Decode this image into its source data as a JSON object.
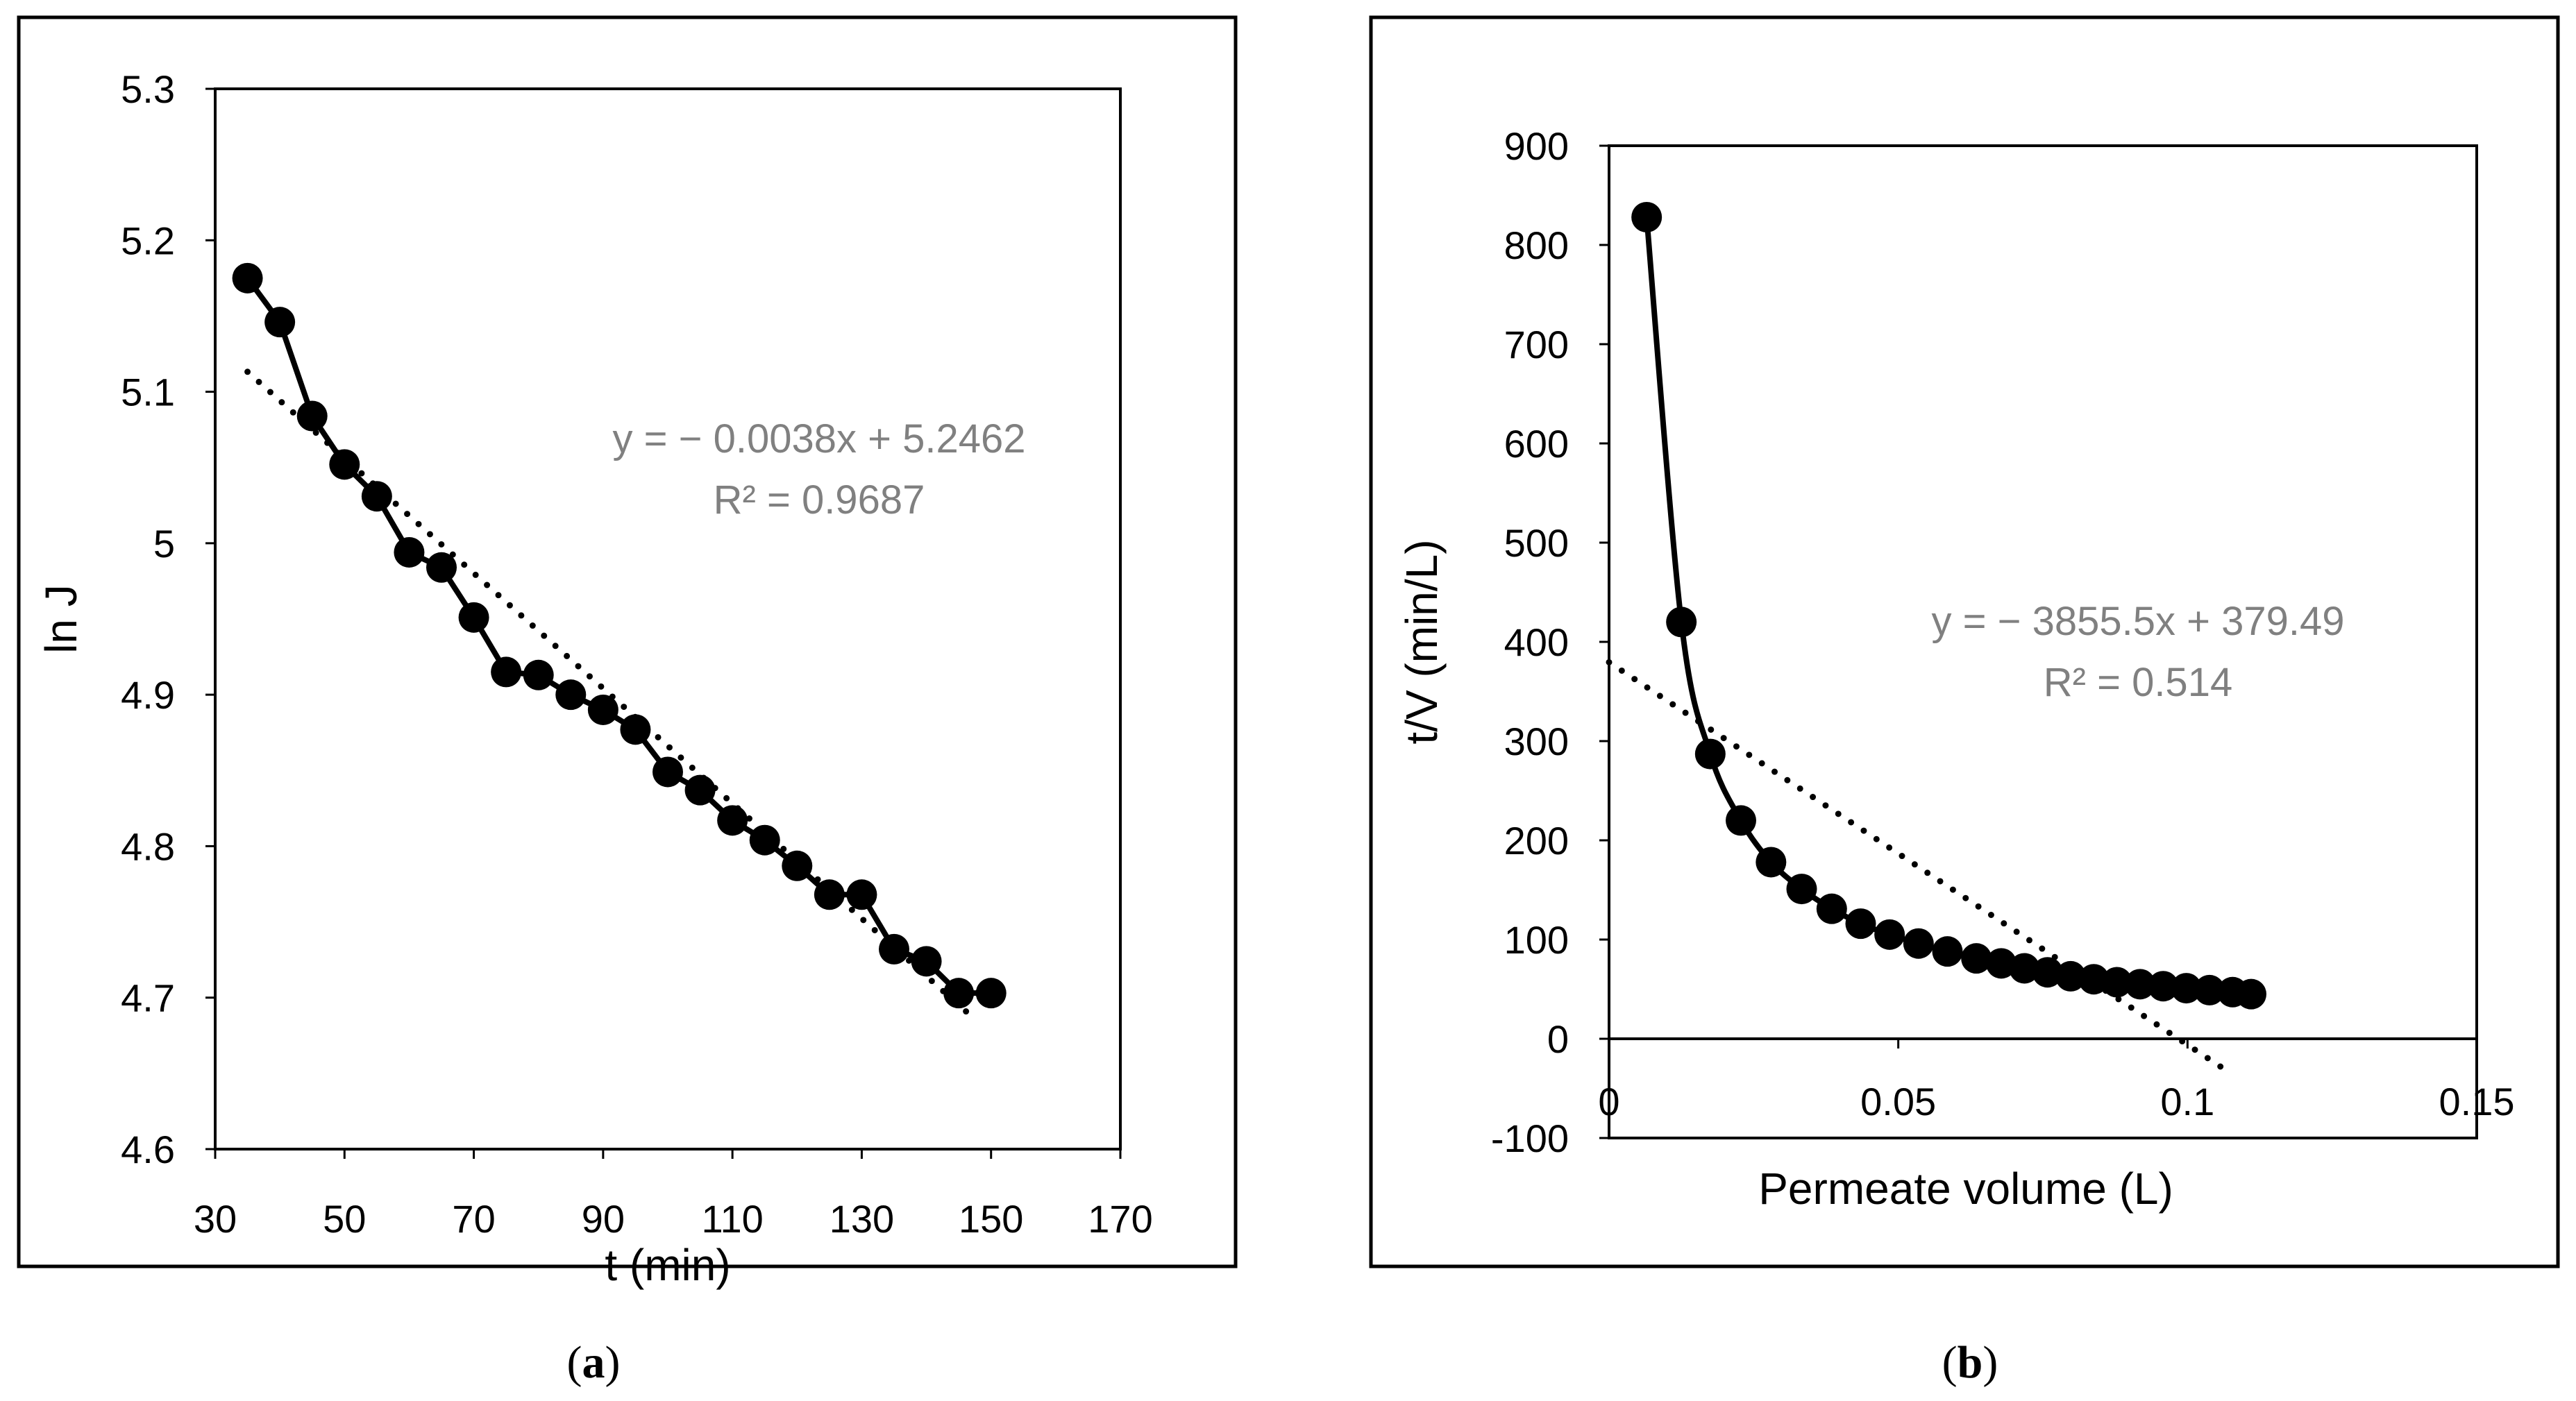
{
  "colors": {
    "series": "#000000",
    "trend_text": "#808080",
    "frame": "#000000",
    "background": "#ffffff"
  },
  "chart_data": [
    {
      "id": "a",
      "type": "scatter",
      "caption_letter": "a",
      "xlabel": "t (min)",
      "ylabel": "ln J",
      "xlim": [
        30,
        170
      ],
      "ylim": [
        4.6,
        5.3
      ],
      "x_ticks": [
        "30",
        "50",
        "70",
        "90",
        "110",
        "130",
        "150",
        "170"
      ],
      "y_ticks": [
        "4.6",
        "4.7",
        "4.8",
        "4.9",
        "5",
        "5.1",
        "5.2",
        "5.3"
      ],
      "series": [
        {
          "name": "ln J",
          "x": [
            35,
            40,
            45,
            50,
            55,
            60,
            65,
            70,
            75,
            80,
            85,
            90,
            95,
            100,
            105,
            110,
            115,
            120,
            125,
            130,
            135,
            140,
            145,
            150
          ],
          "y": [
            5.175,
            5.146,
            5.084,
            5.052,
            5.031,
            4.994,
            4.984,
            4.951,
            4.915,
            4.913,
            4.9,
            4.89,
            4.877,
            4.849,
            4.837,
            4.817,
            4.804,
            4.787,
            4.768,
            4.768,
            4.732,
            4.724,
            4.703,
            4.703
          ]
        }
      ],
      "trendline": {
        "slope": -0.0038,
        "intercept": 5.2462,
        "x_range": [
          35,
          147
        ],
        "equation": "y = − 0.0038x + 5.2462",
        "r2": "R² = 0.9687"
      }
    },
    {
      "id": "b",
      "type": "scatter",
      "caption_letter": "b",
      "xlabel": "Permeate volume (L)",
      "ylabel": "t/V (min/L)",
      "xlim": [
        0,
        0.15
      ],
      "ylim": [
        -100,
        900
      ],
      "x_ticks": [
        "0",
        "0.05",
        "0.1",
        "0.15"
      ],
      "y_ticks": [
        "-100",
        "0",
        "100",
        "200",
        "300",
        "400",
        "500",
        "600",
        "700",
        "800",
        "900"
      ],
      "series": [
        {
          "name": "t/V",
          "x": [
            0.0065,
            0.0125,
            0.0175,
            0.0228,
            0.028,
            0.0333,
            0.0385,
            0.0435,
            0.0485,
            0.0535,
            0.0585,
            0.0635,
            0.0678,
            0.0718,
            0.0758,
            0.0798,
            0.0838,
            0.0878,
            0.0918,
            0.0958,
            0.0998,
            0.1038,
            0.1078,
            0.111
          ],
          "y": [
            828,
            420,
            287,
            220,
            178,
            151,
            131,
            116,
            105,
            96,
            88,
            81,
            76,
            71,
            67,
            63,
            60,
            57,
            55,
            53,
            51,
            49,
            47,
            45
          ]
        }
      ],
      "trendline": {
        "slope": -3855.5,
        "intercept": 379.49,
        "x_range": [
          0,
          0.107
        ],
        "equation": "y = − 3855.5x + 379.49",
        "r2": "R² = 0.514"
      }
    }
  ]
}
